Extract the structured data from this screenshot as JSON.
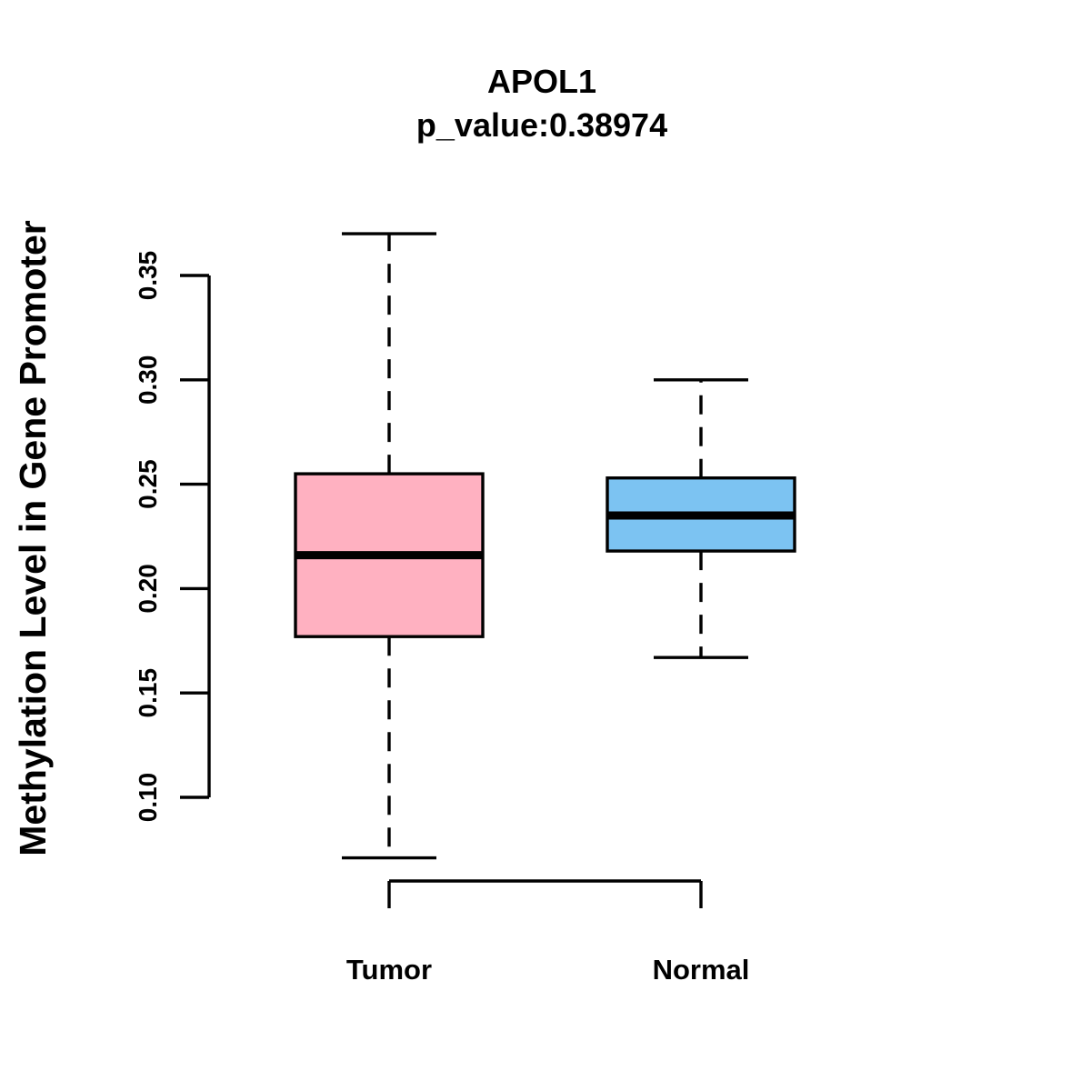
{
  "title": "APOL1",
  "subtitle": "p_value:0.38974",
  "p_value": "0.38974",
  "chart_data": {
    "type": "boxplot",
    "title": "APOL1",
    "subtitle": "p_value:0.38974",
    "p_value": 0.38974,
    "ylabel": "Methylation Level in Gene Promoter",
    "xlabel": "",
    "categories": [
      "Tumor",
      "Normal"
    ],
    "ylim": [
      0.1,
      0.35
    ],
    "yticks": [
      0.1,
      0.15,
      0.2,
      0.25,
      0.3,
      0.35
    ],
    "ytick_labels": [
      "0.10",
      "0.15",
      "0.20",
      "0.25",
      "0.30",
      "0.35"
    ],
    "grid": false,
    "legend": "none",
    "series": [
      {
        "name": "Tumor",
        "whisker_low": 0.071,
        "q1": 0.177,
        "median": 0.216,
        "q3": 0.255,
        "whisker_high": 0.37,
        "fill_color": "#FFB1C1"
      },
      {
        "name": "Normal",
        "whisker_low": 0.167,
        "q1": 0.218,
        "median": 0.235,
        "q3": 0.253,
        "whisker_high": 0.3,
        "fill_color": "#7CC3F2"
      }
    ],
    "colors": {
      "tumor_fill": "#FFB1C1",
      "normal_fill": "#7CC3F2",
      "stroke": "#000000",
      "background": "#FFFFFF"
    }
  }
}
